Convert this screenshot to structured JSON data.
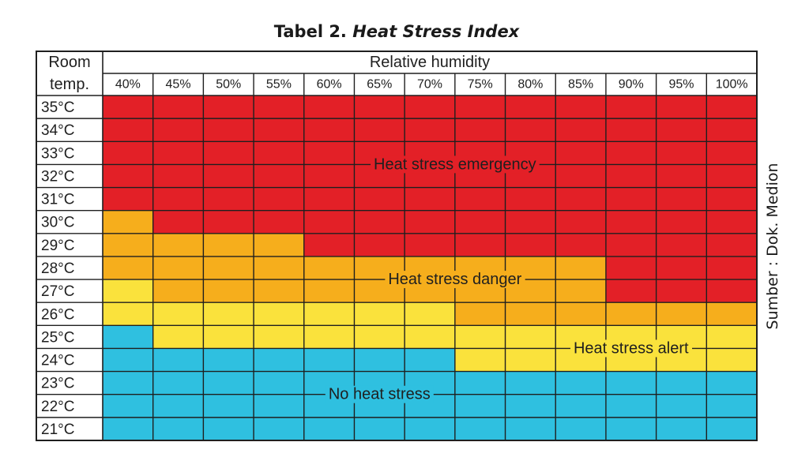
{
  "caption": {
    "prefix": "Tabel 2. ",
    "title": "Heat Stress Index"
  },
  "source": "Sumber : Dok. Medion",
  "chart_data": {
    "type": "heatmap",
    "corner_label_line1": "Room",
    "corner_label_line2": "temp.",
    "column_group_label": "Relative humidity",
    "humidity": [
      "40%",
      "45%",
      "50%",
      "55%",
      "60%",
      "65%",
      "70%",
      "75%",
      "80%",
      "85%",
      "90%",
      "95%",
      "100%"
    ],
    "temperature": [
      "35°C",
      "34°C",
      "33°C",
      "32°C",
      "31°C",
      "30°C",
      "29°C",
      "28°C",
      "27°C",
      "26°C",
      "25°C",
      "24°C",
      "23°C",
      "22°C",
      "21°C"
    ],
    "categories": [
      {
        "key": "emergency",
        "label": "Heat stress emergency",
        "color": "#e32027"
      },
      {
        "key": "danger",
        "label": "Heat stress danger",
        "color": "#f6ae1c"
      },
      {
        "key": "alert",
        "label": "Heat stress alert",
        "color": "#fae23c"
      },
      {
        "key": "none",
        "label": "No heat stress",
        "color": "#2fc0e0"
      }
    ],
    "cells": [
      [
        "emergency",
        "emergency",
        "emergency",
        "emergency",
        "emergency",
        "emergency",
        "emergency",
        "emergency",
        "emergency",
        "emergency",
        "emergency",
        "emergency",
        "emergency"
      ],
      [
        "emergency",
        "emergency",
        "emergency",
        "emergency",
        "emergency",
        "emergency",
        "emergency",
        "emergency",
        "emergency",
        "emergency",
        "emergency",
        "emergency",
        "emergency"
      ],
      [
        "emergency",
        "emergency",
        "emergency",
        "emergency",
        "emergency",
        "emergency",
        "emergency",
        "emergency",
        "emergency",
        "emergency",
        "emergency",
        "emergency",
        "emergency"
      ],
      [
        "emergency",
        "emergency",
        "emergency",
        "emergency",
        "emergency",
        "emergency",
        "emergency",
        "emergency",
        "emergency",
        "emergency",
        "emergency",
        "emergency",
        "emergency"
      ],
      [
        "emergency",
        "emergency",
        "emergency",
        "emergency",
        "emergency",
        "emergency",
        "emergency",
        "emergency",
        "emergency",
        "emergency",
        "emergency",
        "emergency",
        "emergency"
      ],
      [
        "danger",
        "emergency",
        "emergency",
        "emergency",
        "emergency",
        "emergency",
        "emergency",
        "emergency",
        "emergency",
        "emergency",
        "emergency",
        "emergency",
        "emergency"
      ],
      [
        "danger",
        "danger",
        "danger",
        "danger",
        "emergency",
        "emergency",
        "emergency",
        "emergency",
        "emergency",
        "emergency",
        "emergency",
        "emergency",
        "emergency"
      ],
      [
        "danger",
        "danger",
        "danger",
        "danger",
        "danger",
        "danger",
        "danger",
        "danger",
        "danger",
        "danger",
        "emergency",
        "emergency",
        "emergency"
      ],
      [
        "alert",
        "danger",
        "danger",
        "danger",
        "danger",
        "danger",
        "danger",
        "danger",
        "danger",
        "danger",
        "emergency",
        "emergency",
        "emergency"
      ],
      [
        "alert",
        "alert",
        "alert",
        "alert",
        "alert",
        "alert",
        "alert",
        "danger",
        "danger",
        "danger",
        "danger",
        "danger",
        "danger"
      ],
      [
        "none",
        "alert",
        "alert",
        "alert",
        "alert",
        "alert",
        "alert",
        "alert",
        "alert",
        "alert",
        "alert",
        "alert",
        "alert"
      ],
      [
        "none",
        "none",
        "none",
        "none",
        "none",
        "none",
        "none",
        "alert",
        "alert",
        "alert",
        "alert",
        "alert",
        "alert"
      ],
      [
        "none",
        "none",
        "none",
        "none",
        "none",
        "none",
        "none",
        "none",
        "none",
        "none",
        "none",
        "none",
        "none"
      ],
      [
        "none",
        "none",
        "none",
        "none",
        "none",
        "none",
        "none",
        "none",
        "none",
        "none",
        "none",
        "none",
        "none"
      ],
      [
        "none",
        "none",
        "none",
        "none",
        "none",
        "none",
        "none",
        "none",
        "none",
        "none",
        "none",
        "none",
        "none"
      ]
    ]
  }
}
